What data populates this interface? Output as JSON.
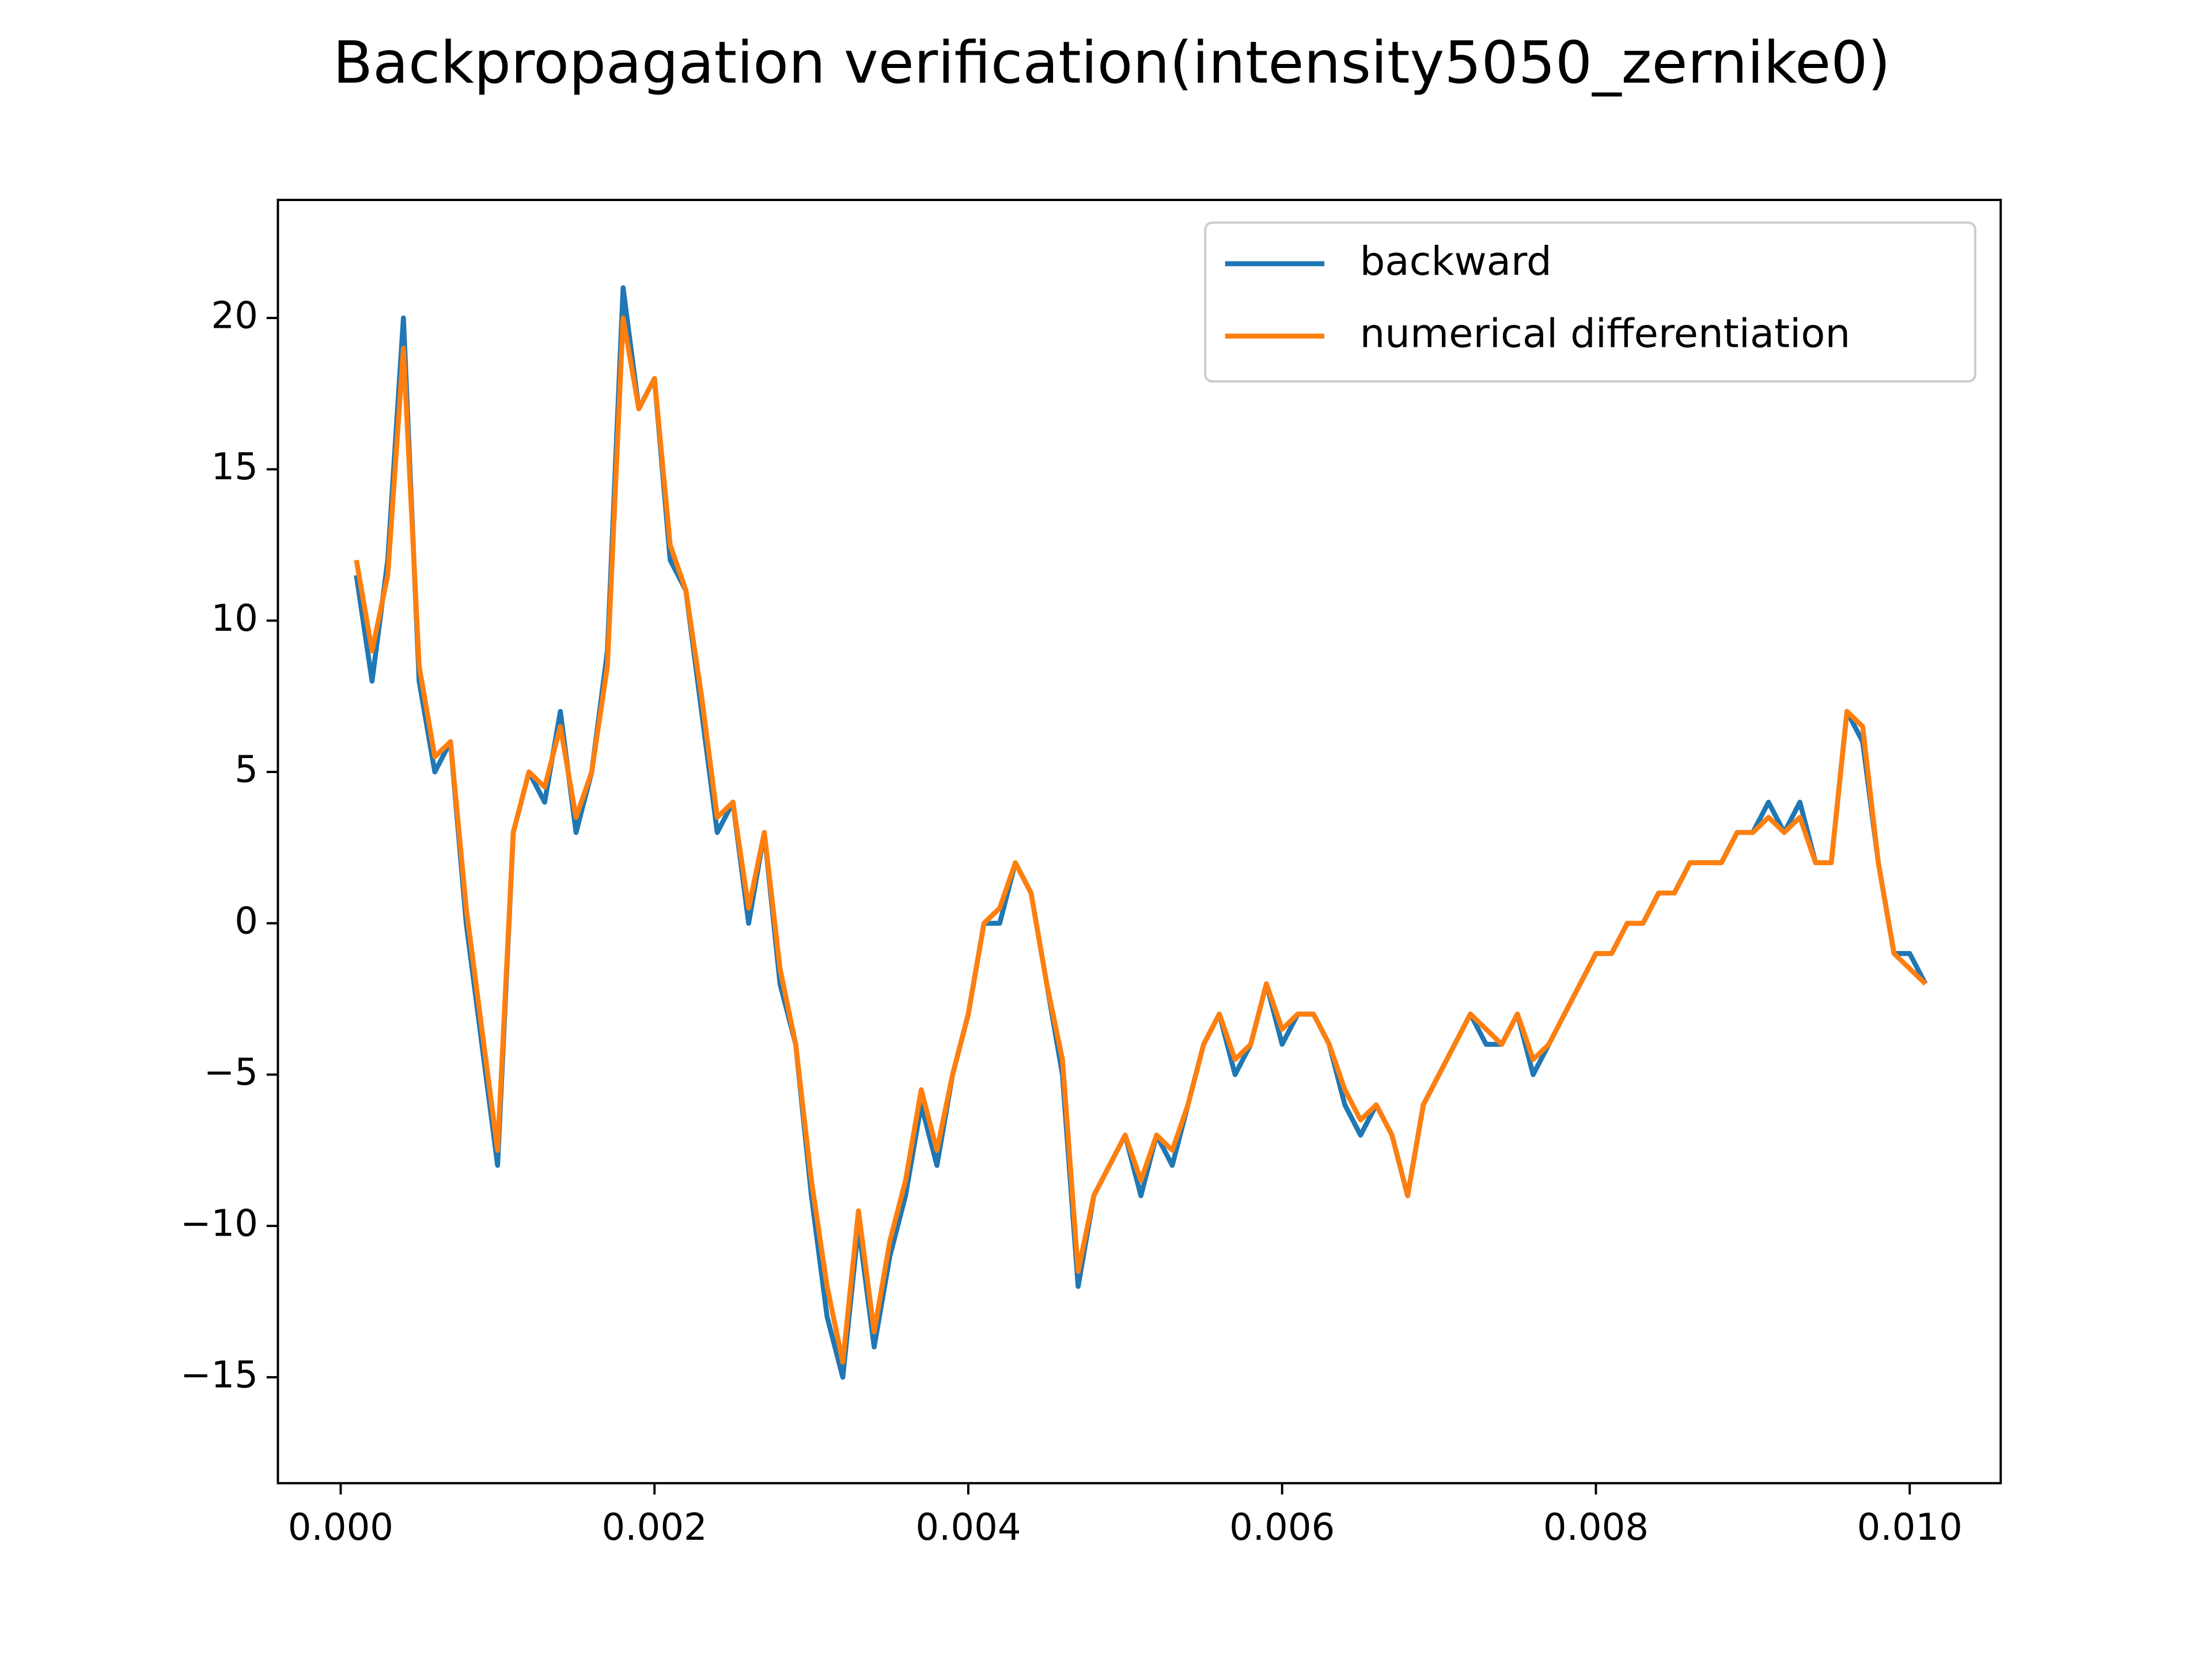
{
  "chart_data": {
    "type": "line",
    "title": "Backpropagation verification(intensity5050_zernike0)",
    "x": [
      0.0001,
      0.0002,
      0.0003,
      0.0004,
      0.0005,
      0.0006,
      0.0007,
      0.0008,
      0.0009,
      0.001,
      0.0011,
      0.0012,
      0.0013,
      0.0014,
      0.0015,
      0.0016,
      0.0017,
      0.0018,
      0.0019,
      0.002,
      0.0021,
      0.0022,
      0.0023,
      0.0024,
      0.0025,
      0.0026,
      0.0027,
      0.0028,
      0.0029,
      0.003,
      0.0031,
      0.0032,
      0.0033,
      0.0034,
      0.0035,
      0.0036,
      0.0037,
      0.0038,
      0.0039,
      0.004,
      0.0041,
      0.0042,
      0.0043,
      0.0044,
      0.0045,
      0.0046,
      0.0047,
      0.0048,
      0.0049,
      0.005,
      0.0051,
      0.0052,
      0.0053,
      0.0054,
      0.0055,
      0.0056,
      0.0057,
      0.0058,
      0.0059,
      0.006,
      0.0061,
      0.0062,
      0.0063,
      0.0064,
      0.0065,
      0.0066,
      0.0067,
      0.0068,
      0.0069,
      0.007,
      0.0071,
      0.0072,
      0.0073,
      0.0074,
      0.0075,
      0.0076,
      0.0077,
      0.0078,
      0.0079,
      0.008,
      0.0081,
      0.0082,
      0.0083,
      0.0084,
      0.0085,
      0.0086,
      0.0087,
      0.0088,
      0.0089,
      0.009,
      0.0091,
      0.0092,
      0.0093,
      0.0094,
      0.0095,
      0.0096,
      0.0097,
      0.0098,
      0.0099,
      0.01,
      0.0101
    ],
    "series": [
      {
        "name": "backward",
        "color": "#1f77b4",
        "values": [
          11.5,
          8,
          12,
          20,
          8,
          5,
          6,
          0,
          -4,
          -8,
          3,
          5,
          4,
          7,
          3,
          5,
          9,
          21,
          17,
          18,
          12,
          11,
          7,
          3,
          4,
          0,
          3,
          -2,
          -4,
          -9,
          -13,
          -15,
          -10,
          -14,
          -11,
          -9,
          -6,
          -8,
          -5,
          -3,
          0,
          0,
          2,
          1,
          -2,
          -5,
          -12,
          -9,
          -8,
          -7,
          -9,
          -7,
          -8,
          -6,
          -4,
          -3,
          -5,
          -4,
          -2,
          -4,
          -3,
          -3,
          -4,
          -6,
          -7,
          -6,
          -7,
          -9,
          -6,
          -5,
          -4,
          -3,
          -4,
          -4,
          -3,
          -5,
          -4,
          -3,
          -2,
          -1,
          -1,
          0,
          0,
          1,
          1,
          2,
          2,
          2,
          3,
          3,
          4,
          3,
          4,
          2,
          2,
          7,
          6,
          2,
          -1,
          -1,
          -2
        ]
      },
      {
        "name": "numerical differentiation",
        "color": "#ff7f0e",
        "values": [
          12,
          9,
          11.5,
          19,
          8.5,
          5.5,
          6,
          0.5,
          -3.5,
          -7.5,
          3,
          5,
          4.5,
          6.5,
          3.5,
          5,
          8.5,
          20,
          17,
          18,
          12.5,
          11,
          7.5,
          3.5,
          4,
          0.5,
          3,
          -1.5,
          -4,
          -8.5,
          -12,
          -14.5,
          -9.5,
          -13.5,
          -10.5,
          -8.5,
          -5.5,
          -7.5,
          -5,
          -3,
          0,
          0.5,
          2,
          1,
          -2,
          -4.5,
          -11.5,
          -9,
          -8,
          -7,
          -8.5,
          -7,
          -7.5,
          -6,
          -4,
          -3,
          -4.5,
          -4,
          -2,
          -3.5,
          -3,
          -3,
          -4,
          -5.5,
          -6.5,
          -6,
          -7,
          -9,
          -6,
          -5,
          -4,
          -3,
          -3.5,
          -4,
          -3,
          -4.5,
          -4,
          -3,
          -2,
          -1,
          -1,
          0,
          0,
          1,
          1,
          2,
          2,
          2,
          3,
          3,
          3.5,
          3,
          3.5,
          2,
          2,
          7,
          6.5,
          2,
          -1,
          -1.5,
          -2
        ]
      }
    ],
    "xlim": [
      -0.0004,
      0.01058
    ],
    "ylim": [
      -18.5,
      23.9
    ],
    "xticks": [
      {
        "value": 0,
        "label": "0.000"
      },
      {
        "value": 0.002,
        "label": "0.002"
      },
      {
        "value": 0.004,
        "label": "0.004"
      },
      {
        "value": 0.006,
        "label": "0.006"
      },
      {
        "value": 0.008,
        "label": "0.008"
      },
      {
        "value": 0.01,
        "label": "0.010"
      }
    ],
    "yticks": [
      {
        "value": -15,
        "label": "−15"
      },
      {
        "value": -10,
        "label": "−10"
      },
      {
        "value": -5,
        "label": "−5"
      },
      0,
      5,
      10,
      15,
      20
    ],
    "legend": "upper right"
  }
}
